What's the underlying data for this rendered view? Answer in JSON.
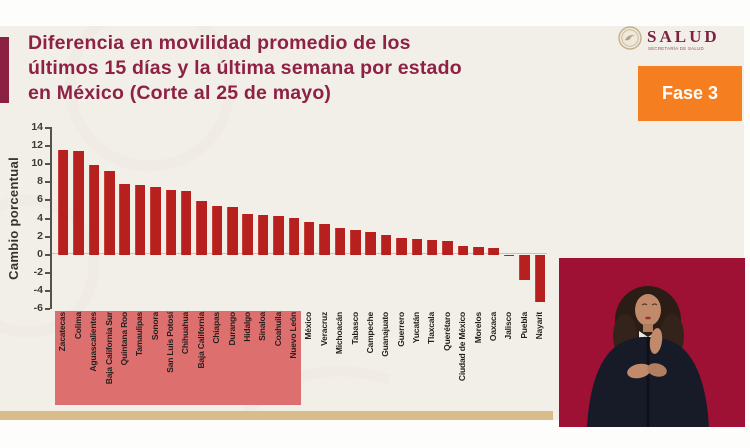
{
  "slide": {
    "title_lines": [
      "Diferencia en movilidad promedio de los",
      "últimos 15 días y la última semana por estado",
      "en México (Corte al 25 de mayo)"
    ],
    "phase_badge": "Fase 3",
    "logo": {
      "name": "SALUD",
      "subtitle": "SECRETARÍA DE SALUD"
    }
  },
  "chart_data": {
    "type": "bar",
    "title": "Diferencia en movilidad promedio de los últimos 15 días y la última semana por estado en México (Corte al 25 de mayo)",
    "xlabel": "",
    "ylabel": "Cambio porcentual",
    "ylim": [
      -6,
      14
    ],
    "yticks": [
      14,
      12,
      10,
      8,
      6,
      4,
      2,
      0,
      -2,
      -4,
      -6
    ],
    "grid": false,
    "legend": "none",
    "highlight_count": 16,
    "categories": [
      "Zacatecas",
      "Colima",
      "Aguascalientes",
      "Baja California Sur",
      "Quintana Roo",
      "Tamaulipas",
      "Sonora",
      "San Luis Potosí",
      "Chihuahua",
      "Baja California",
      "Chiapas",
      "Durango",
      "Hidalgo",
      "Sinaloa",
      "Coahuila",
      "Nuevo León",
      "México",
      "Veracruz",
      "Michoacán",
      "Tabasco",
      "Campeche",
      "Guanajuato",
      "Guerrero",
      "Yucatán",
      "Tlaxcala",
      "Querétaro",
      "Ciudad de México",
      "Morelos",
      "Oaxaca",
      "Jalisco",
      "Puebla",
      "Nayarit"
    ],
    "values": [
      11.6,
      11.5,
      9.9,
      9.3,
      7.8,
      7.7,
      7.5,
      7.2,
      7.0,
      5.9,
      5.4,
      5.3,
      4.5,
      4.4,
      4.3,
      4.1,
      3.6,
      3.4,
      3.0,
      2.7,
      2.5,
      2.2,
      1.9,
      1.7,
      1.6,
      1.5,
      1.0,
      0.9,
      0.7,
      -0.2,
      -2.8,
      -5.2
    ]
  },
  "colors": {
    "title": "#8e2144",
    "accent_bar": "#8c2042",
    "bar": "#b6201e",
    "highlight_band": "#dd6f6f",
    "phase_badge_bg": "#f57e20",
    "bottom_rule": "#d8bd8a",
    "video_bg": "#9e1034",
    "slide_bg": "#f2efe9"
  }
}
